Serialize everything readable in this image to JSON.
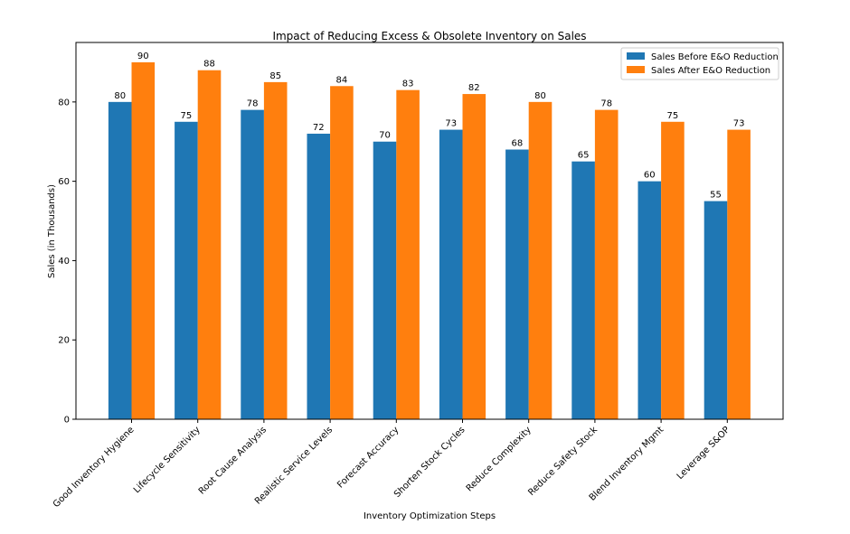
{
  "chart_data": {
    "type": "bar",
    "title": "Impact of Reducing Excess & Obsolete Inventory on Sales",
    "xlabel": "Inventory Optimization Steps",
    "ylabel": "Sales (in Thousands)",
    "ylim": [
      0,
      95
    ],
    "yticks": [
      0,
      20,
      40,
      60,
      80
    ],
    "grid": false,
    "legend_position": "upper right",
    "categories": [
      "Good Inventory Hygiene",
      "Lifecycle Sensitivity",
      "Root Cause Analysis",
      "Realistic Service Levels",
      "Forecast Accuracy",
      "Shorten Stock Cycles",
      "Reduce Complexity",
      "Reduce Safety Stock",
      "Blend Inventory Mgmt",
      "Leverage S&OP"
    ],
    "series": [
      {
        "name": "Sales Before E&O Reduction",
        "color": "#1f77b4",
        "values": [
          80,
          75,
          78,
          72,
          70,
          73,
          68,
          65,
          60,
          55
        ]
      },
      {
        "name": "Sales After E&O Reduction",
        "color": "#ff7f0e",
        "values": [
          90,
          88,
          85,
          84,
          83,
          82,
          80,
          78,
          75,
          73
        ]
      }
    ]
  }
}
